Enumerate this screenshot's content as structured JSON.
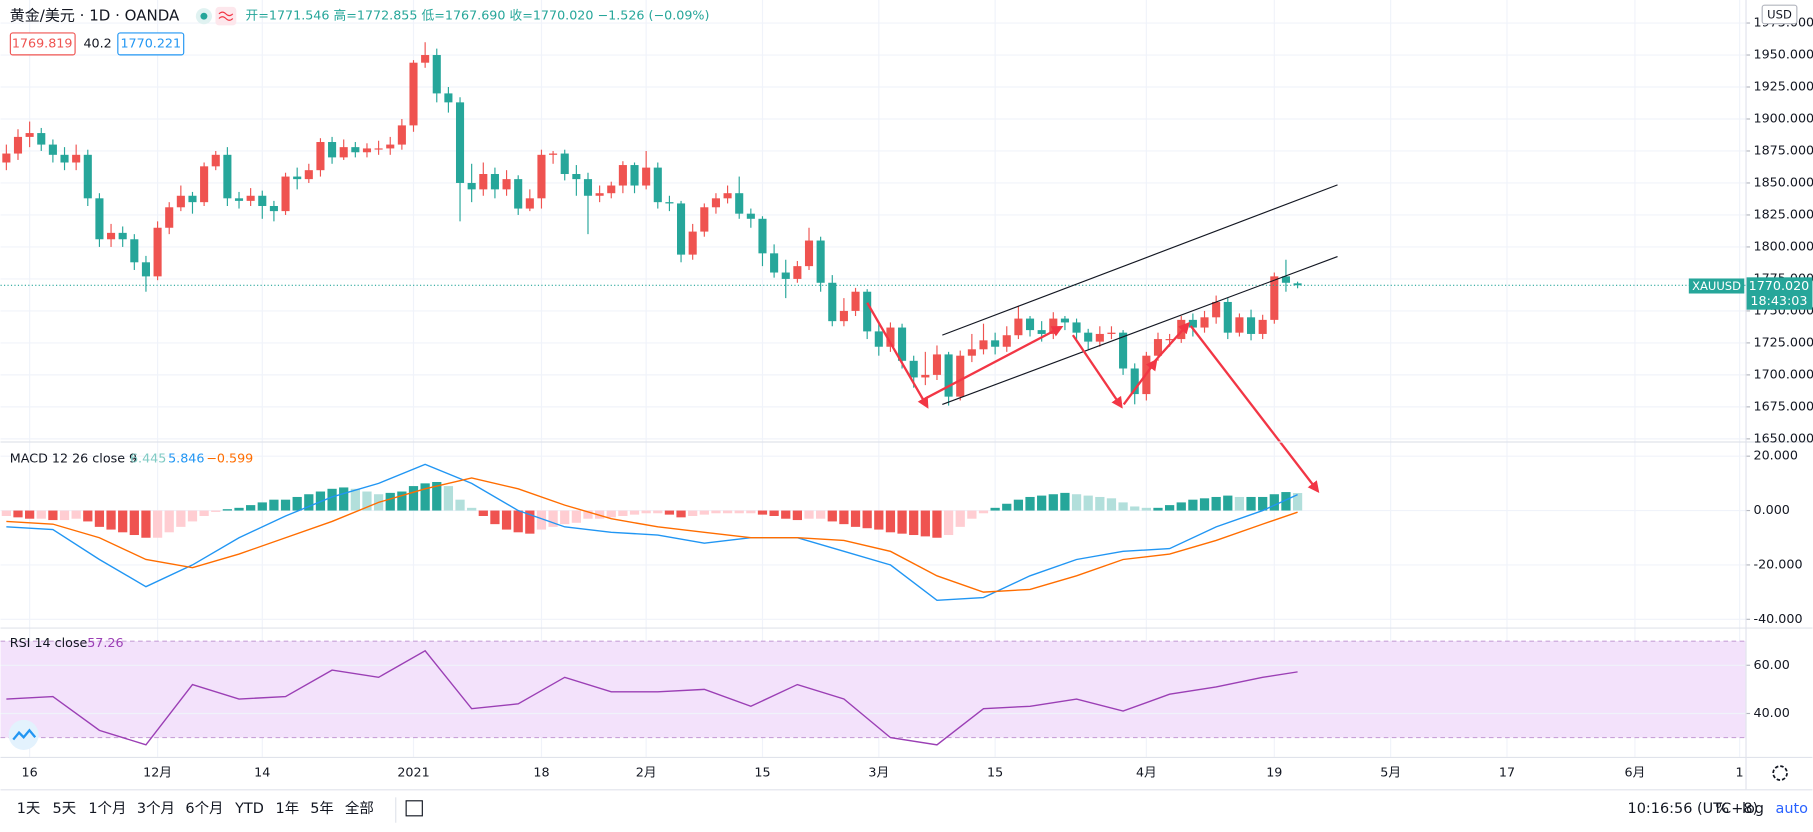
{
  "chart_data": [
    {
      "type": "candlestick",
      "title": "黄金/美元 · 1D · OANDA",
      "legend": "开=1771.546  高=1772.855  低=1767.690  收=1770.020  −1.526 (−0.09%)",
      "badges": [
        "1769.819",
        "40.2",
        "1770.221"
      ],
      "currency": "USD",
      "price_label": {
        "symbol": "XAUUSD",
        "price": "1770.020",
        "countdown": "18:43:03"
      },
      "up_color": "#ef5350",
      "down_color": "#26a69a",
      "xlim": [
        -0.5,
        149.5
      ],
      "xticks": [
        {
          "value": 2,
          "label": "16"
        },
        {
          "value": 13,
          "label": "12月"
        },
        {
          "value": 22,
          "label": "14"
        },
        {
          "value": 35,
          "label": "2021"
        },
        {
          "value": 46,
          "label": "18"
        },
        {
          "value": 55,
          "label": "2月"
        },
        {
          "value": 65,
          "label": "15"
        },
        {
          "value": 75,
          "label": "3月"
        },
        {
          "value": 85,
          "label": "15"
        },
        {
          "value": 98,
          "label": "4月"
        },
        {
          "value": 109,
          "label": "19"
        },
        {
          "value": 119,
          "label": "5月"
        },
        {
          "value": 129,
          "label": "17"
        },
        {
          "value": 140,
          "label": "6月"
        },
        {
          "value": 149,
          "label": "1"
        }
      ],
      "ylim": [
        1648,
        1993
      ],
      "yticks": [
        {
          "value": 1650,
          "label": "1650.000"
        },
        {
          "value": 1675,
          "label": "1675.000"
        },
        {
          "value": 1700,
          "label": "1700.000"
        },
        {
          "value": 1725,
          "label": "1725.000"
        },
        {
          "value": 1750,
          "label": "1750.000"
        },
        {
          "value": 1775,
          "label": "1775.000"
        },
        {
          "value": 1800,
          "label": "1800.000"
        },
        {
          "value": 1825,
          "label": "1825.000"
        },
        {
          "value": 1850,
          "label": "1850.000"
        },
        {
          "value": 1875,
          "label": "1875.000"
        },
        {
          "value": 1900,
          "label": "1900.000"
        },
        {
          "value": 1925,
          "label": "1925.000"
        },
        {
          "value": 1950,
          "label": "1950.000"
        },
        {
          "value": 1975,
          "label": "1975.000"
        }
      ],
      "open": [
        1866,
        1873,
        1886,
        1889,
        1880,
        1872,
        1866,
        1872,
        1838,
        1806,
        1811,
        1806,
        1788,
        1777,
        1815,
        1831,
        1840,
        1835,
        1863,
        1872,
        1838,
        1836,
        1840,
        1832,
        1828,
        1855,
        1853,
        1860,
        1882,
        1870,
        1878,
        1874,
        1877,
        1877,
        1880,
        1895,
        1944,
        1950,
        1920,
        1913,
        1850,
        1845,
        1857,
        1845,
        1853,
        1830,
        1838,
        1872,
        1873,
        1857,
        1853,
        1840,
        1842,
        1848,
        1864,
        1848,
        1862,
        1835,
        1834,
        1794,
        1812,
        1831,
        1838,
        1842,
        1826,
        1822,
        1795,
        1780,
        1775,
        1785,
        1805,
        1772,
        1742,
        1750,
        1765,
        1734,
        1722,
        1737,
        1711,
        1698,
        1700,
        1716,
        1683,
        1715,
        1720,
        1727,
        1722,
        1731,
        1744,
        1735,
        1732,
        1744,
        1741,
        1733,
        1726,
        1732,
        1733,
        1705,
        1685,
        1715,
        1728,
        1728,
        1743,
        1737,
        1745,
        1757,
        1733,
        1745,
        1732,
        1743,
        1777,
        1771.546
      ],
      "high": [
        1880,
        1892,
        1898,
        1893,
        1884,
        1878,
        1880,
        1876,
        1842,
        1818,
        1816,
        1810,
        1793,
        1820,
        1835,
        1848,
        1843,
        1866,
        1875,
        1878,
        1843,
        1846,
        1844,
        1836,
        1858,
        1862,
        1865,
        1885,
        1886,
        1884,
        1882,
        1881,
        1883,
        1886,
        1900,
        1946,
        1960,
        1955,
        1925,
        1917,
        1865,
        1866,
        1862,
        1860,
        1856,
        1845,
        1876,
        1875,
        1876,
        1864,
        1858,
        1848,
        1851,
        1867,
        1866,
        1875,
        1866,
        1840,
        1836,
        1818,
        1834,
        1842,
        1848,
        1855,
        1830,
        1824,
        1802,
        1790,
        1789,
        1815,
        1808,
        1778,
        1760,
        1768,
        1767,
        1740,
        1741,
        1740,
        1715,
        1718,
        1723,
        1718,
        1719,
        1732,
        1740,
        1733,
        1738,
        1754,
        1746,
        1742,
        1749,
        1746,
        1744,
        1736,
        1738,
        1738,
        1735,
        1709,
        1718,
        1733,
        1732,
        1746,
        1748,
        1750,
        1762,
        1760,
        1748,
        1751,
        1747,
        1780,
        1790,
        1772.855
      ],
      "low": [
        1860,
        1868,
        1878,
        1875,
        1866,
        1860,
        1860,
        1832,
        1800,
        1800,
        1800,
        1782,
        1765,
        1774,
        1810,
        1828,
        1826,
        1832,
        1860,
        1832,
        1830,
        1832,
        1822,
        1820,
        1825,
        1845,
        1850,
        1855,
        1865,
        1868,
        1870,
        1870,
        1872,
        1872,
        1876,
        1890,
        1940,
        1913,
        1905,
        1820,
        1835,
        1840,
        1838,
        1840,
        1825,
        1828,
        1830,
        1865,
        1852,
        1840,
        1810,
        1835,
        1838,
        1842,
        1842,
        1845,
        1830,
        1828,
        1788,
        1790,
        1808,
        1826,
        1834,
        1822,
        1815,
        1785,
        1776,
        1760,
        1772,
        1782,
        1765,
        1738,
        1738,
        1746,
        1728,
        1715,
        1718,
        1705,
        1690,
        1692,
        1696,
        1676,
        1680,
        1710,
        1716,
        1716,
        1718,
        1728,
        1730,
        1726,
        1728,
        1735,
        1728,
        1720,
        1722,
        1728,
        1700,
        1677,
        1680,
        1711,
        1722,
        1725,
        1730,
        1733,
        1740,
        1728,
        1730,
        1727,
        1728,
        1740,
        1765,
        1767.69
      ],
      "close": [
        1873,
        1886,
        1889,
        1880,
        1872,
        1866,
        1872,
        1838,
        1806,
        1811,
        1806,
        1788,
        1777,
        1815,
        1831,
        1840,
        1835,
        1863,
        1872,
        1838,
        1836,
        1840,
        1832,
        1828,
        1855,
        1853,
        1860,
        1882,
        1870,
        1878,
        1874,
        1877,
        1877,
        1880,
        1895,
        1944,
        1950,
        1920,
        1913,
        1850,
        1845,
        1857,
        1845,
        1853,
        1830,
        1838,
        1872,
        1873,
        1857,
        1853,
        1840,
        1842,
        1848,
        1864,
        1848,
        1862,
        1835,
        1834,
        1794,
        1812,
        1831,
        1838,
        1842,
        1826,
        1822,
        1795,
        1780,
        1775,
        1785,
        1805,
        1772,
        1742,
        1750,
        1765,
        1734,
        1722,
        1737,
        1711,
        1698,
        1700,
        1716,
        1683,
        1715,
        1720,
        1727,
        1722,
        1731,
        1744,
        1735,
        1732,
        1744,
        1741,
        1733,
        1726,
        1732,
        1733,
        1705,
        1685,
        1715,
        1728,
        1728,
        1743,
        1737,
        1745,
        1757,
        1733,
        1745,
        1732,
        1743,
        1777,
        1772,
        1770.02
      ]
    },
    {
      "type": "macd",
      "title": "MACD 12 26 close 9",
      "legend_values": [
        {
          "text": "6.445",
          "color": "#80cbc4"
        },
        {
          "text": "5.846",
          "color": "#2196f3"
        },
        {
          "text": "−0.599",
          "color": "#ff6d00"
        }
      ],
      "xlim": [
        -0.5,
        149.5
      ],
      "ylim": [
        -43,
        25
      ],
      "yticks": [
        {
          "value": 20,
          "label": "20.000"
        },
        {
          "value": 0,
          "label": "0.000"
        },
        {
          "value": -20,
          "label": "-20.000"
        },
        {
          "value": -40,
          "label": "-40.000"
        }
      ],
      "hist_colors": {
        "rise_pos": "#26a69a",
        "fall_pos": "#b2dfdb",
        "rise_neg": "#ffcdd2",
        "fall_neg": "#ef5350"
      },
      "histogram": [
        -2,
        -2.5,
        -3,
        -3,
        -3.5,
        -3.5,
        -3,
        -4,
        -6,
        -7,
        -8,
        -9,
        -10,
        -10,
        -8,
        -6,
        -4,
        -2,
        -0.5,
        0.5,
        1,
        2,
        3,
        4,
        4,
        5,
        6,
        7,
        8,
        8.5,
        8,
        7,
        6,
        6.5,
        7,
        9,
        10,
        10.5,
        9,
        4,
        1,
        -2,
        -5,
        -7,
        -8,
        -8.5,
        -7,
        -6,
        -5,
        -4.5,
        -3,
        -3,
        -2.5,
        -2,
        -1.5,
        -1,
        -1,
        -1.5,
        -2.5,
        -2,
        -1.5,
        -1,
        -1,
        -1,
        -1,
        -1.5,
        -2,
        -3,
        -3.5,
        -3,
        -3,
        -4,
        -5,
        -6,
        -6.5,
        -7,
        -8,
        -8.5,
        -9,
        -9.5,
        -10,
        -9,
        -6,
        -3,
        -1,
        1,
        2.5,
        4,
        5,
        5.5,
        6,
        6.5,
        6,
        5.5,
        5,
        4.5,
        3,
        1.5,
        1,
        1,
        2,
        3,
        4,
        4.5,
        5,
        5.5,
        5,
        5,
        5,
        6,
        6.8,
        6.445
      ],
      "x": [
        0,
        4,
        8,
        12,
        16,
        20,
        24,
        28,
        32,
        36,
        40,
        44,
        48,
        52,
        56,
        60,
        64,
        68,
        72,
        76,
        80,
        84,
        88,
        92,
        96,
        100,
        104,
        108,
        111
      ],
      "series": [
        {
          "color": "#2196f3",
          "values": [
            -6,
            -7,
            -18,
            -28,
            -20,
            -10,
            -2,
            5,
            10,
            17,
            10,
            0,
            -6,
            -8,
            -9,
            -12,
            -10,
            -10,
            -15,
            -20,
            -33,
            -32,
            -24,
            -18,
            -15,
            -14,
            -6,
            0,
            5.846
          ]
        },
        {
          "color": "#ff6d00",
          "values": [
            -4,
            -5,
            -10,
            -18,
            -21,
            -16,
            -10,
            -4,
            3,
            8,
            12,
            8,
            2,
            -3,
            -6,
            -8,
            -10,
            -10,
            -11,
            -15,
            -24,
            -30,
            -29,
            -24,
            -18,
            -16,
            -11,
            -5,
            -0.599
          ]
        }
      ]
    },
    {
      "type": "line",
      "title": "RSI 14 close",
      "legend_value": "57.26",
      "legend_color": "#9b3fb5",
      "xlim": [
        -0.5,
        149.5
      ],
      "ylim": [
        22,
        75.2
      ],
      "yticks": [
        {
          "value": 60,
          "label": "60.00"
        },
        {
          "value": 40,
          "label": "40.00"
        }
      ],
      "bands": [
        30,
        70
      ],
      "band_color": "#f3e2fb",
      "band_line_color": "#c8a2d8",
      "x": [
        0,
        4,
        8,
        12,
        16,
        20,
        24,
        28,
        32,
        36,
        40,
        44,
        48,
        52,
        56,
        60,
        64,
        68,
        72,
        76,
        80,
        84,
        88,
        92,
        96,
        100,
        104,
        108,
        111
      ],
      "series": [
        {
          "color": "#9b3fb5",
          "values": [
            46,
            47,
            33,
            27,
            52,
            46,
            47,
            58,
            55,
            66,
            42,
            44,
            55,
            49,
            49,
            50,
            43,
            52,
            46,
            30,
            27,
            42,
            43,
            46,
            41,
            48,
            51,
            55,
            57.26
          ]
        }
      ]
    }
  ],
  "toolbar": {
    "ranges": [
      "1天",
      "5天",
      "1个月",
      "3个月",
      "6个月",
      "YTD",
      "1年",
      "5年",
      "全部"
    ],
    "time": "10:16:56 (UTC+8)",
    "options": [
      "%",
      "log",
      "auto"
    ]
  }
}
